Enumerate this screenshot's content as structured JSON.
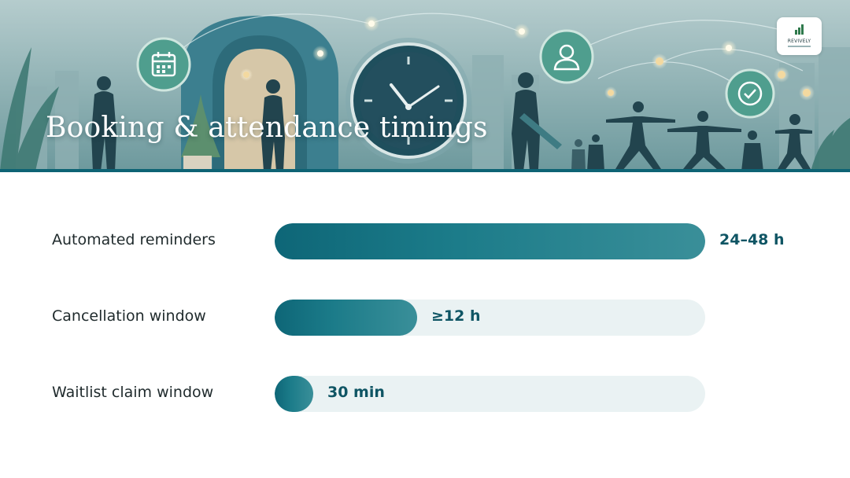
{
  "title": "Booking & attendance timings",
  "logo": {
    "text": "REVIVELY"
  },
  "colors": {
    "accent": "#0e6677",
    "track": "#eaf2f3",
    "value_text": "#0f5564"
  },
  "chart_data": {
    "type": "bar",
    "orientation": "horizontal",
    "categories": [
      "Automated reminders",
      "Cancellation window",
      "Waitlist claim window"
    ],
    "values": [
      1.0,
      0.33,
      0.09
    ],
    "value_labels": [
      "24–48 h",
      "≥12 h",
      "30 min"
    ],
    "title": "Booking & attendance timings",
    "xlim": [
      0,
      1
    ],
    "grid": false
  }
}
